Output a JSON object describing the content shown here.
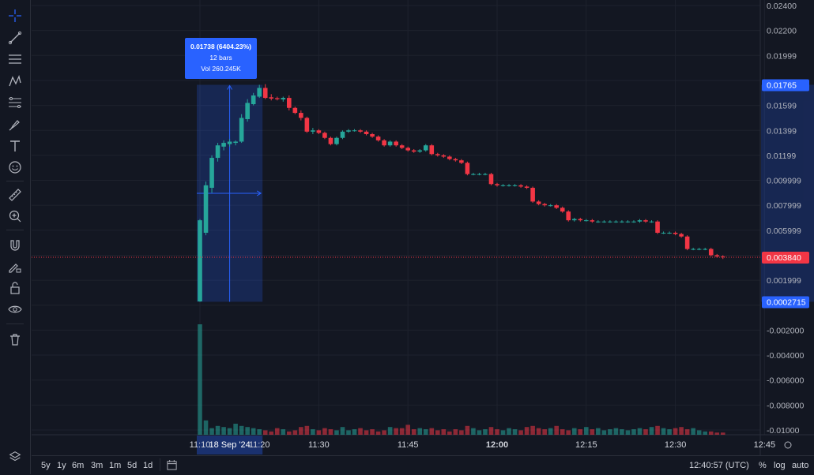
{
  "toolbar": {
    "icons": [
      "crosshair-icon",
      "trend-line-icon",
      "horizontal-lines-icon",
      "pattern-icon",
      "fib-icon",
      "brush-icon",
      "text-icon",
      "emoji-icon",
      "ruler-icon",
      "zoom-in-icon",
      "magnet-icon",
      "pencil-lock-icon",
      "lock-icon",
      "eye-icon",
      "trash-icon"
    ]
  },
  "measure_tooltip": {
    "line1": "0.01738 (6404.23%)",
    "line2": "12 bars",
    "line3": "Vol 260.245K"
  },
  "price_axis": {
    "labels": [
      "0.02400",
      "0.02200",
      "0.01999",
      "0.01765",
      "0.01599",
      "0.01399",
      "0.01199",
      "0.009999",
      "0.007999",
      "0.005999",
      "0.003840",
      "0.001999",
      "0.0002715",
      "-0.002000",
      "-0.004000",
      "-0.006000",
      "-0.008000",
      "-0.01000"
    ],
    "current_price_label": "0.01765",
    "last_price_label": "0.003840",
    "measure_low_label": "0.0002715"
  },
  "time_axis": {
    "labels": [
      "11:10",
      "18 Sep '24",
      "11:20",
      "11:30",
      "11:45",
      "12:00",
      "12:15",
      "12:30",
      "12:45"
    ]
  },
  "bottom_bar": {
    "ranges": [
      "5y",
      "1y",
      "6m",
      "3m",
      "1m",
      "5d",
      "1d"
    ],
    "clock": "12:40:57 (UTC)",
    "percent_label": "%",
    "log_label": "log",
    "auto_label": "auto"
  },
  "colors": {
    "up": "#26a69a",
    "down": "#f23645",
    "accent": "#2962ff",
    "bg": "#131722"
  },
  "chart_data": {
    "type": "candlestick",
    "timeframe": "1m",
    "ylim": [
      -0.0102,
      0.0242
    ],
    "candles": [
      {
        "t": "11:10",
        "o": 0.0003,
        "h": 0.0069,
        "l": 0.00027,
        "c": 0.0068
      },
      {
        "t": "11:11",
        "o": 0.0058,
        "h": 0.0099,
        "l": 0.0056,
        "c": 0.0096
      },
      {
        "t": "11:12",
        "o": 0.0094,
        "h": 0.012,
        "l": 0.009,
        "c": 0.0118
      },
      {
        "t": "11:13",
        "o": 0.0118,
        "h": 0.013,
        "l": 0.0115,
        "c": 0.0128
      },
      {
        "t": "11:14",
        "o": 0.0127,
        "h": 0.0132,
        "l": 0.0124,
        "c": 0.013
      },
      {
        "t": "11:15",
        "o": 0.0129,
        "h": 0.0133,
        "l": 0.0127,
        "c": 0.0131
      },
      {
        "t": "11:16",
        "o": 0.013,
        "h": 0.0132,
        "l": 0.0128,
        "c": 0.0131
      },
      {
        "t": "11:17",
        "o": 0.0131,
        "h": 0.0153,
        "l": 0.013,
        "c": 0.015
      },
      {
        "t": "11:18",
        "o": 0.0149,
        "h": 0.0165,
        "l": 0.0147,
        "c": 0.0162
      },
      {
        "t": "11:19",
        "o": 0.0161,
        "h": 0.017,
        "l": 0.016,
        "c": 0.0168
      },
      {
        "t": "11:20",
        "o": 0.0167,
        "h": 0.01765,
        "l": 0.0166,
        "c": 0.0174
      },
      {
        "t": "11:21",
        "o": 0.0174,
        "h": 0.0177,
        "l": 0.0165,
        "c": 0.0166
      },
      {
        "t": "11:22",
        "o": 0.01665,
        "h": 0.0169,
        "l": 0.0164,
        "c": 0.01655
      },
      {
        "t": "11:23",
        "o": 0.01658,
        "h": 0.0167,
        "l": 0.0164,
        "c": 0.0165
      },
      {
        "t": "11:24",
        "o": 0.01648,
        "h": 0.0167,
        "l": 0.0163,
        "c": 0.0166
      },
      {
        "t": "11:25",
        "o": 0.0166,
        "h": 0.0168,
        "l": 0.0156,
        "c": 0.0158
      },
      {
        "t": "11:26",
        "o": 0.0158,
        "h": 0.0159,
        "l": 0.0153,
        "c": 0.0154
      },
      {
        "t": "11:27",
        "o": 0.0154,
        "h": 0.0156,
        "l": 0.0148,
        "c": 0.015
      },
      {
        "t": "11:28",
        "o": 0.015,
        "h": 0.0151,
        "l": 0.0138,
        "c": 0.0139
      },
      {
        "t": "11:29",
        "o": 0.0139,
        "h": 0.0142,
        "l": 0.0137,
        "c": 0.014
      },
      {
        "t": "11:30",
        "o": 0.014,
        "h": 0.0141,
        "l": 0.0137,
        "c": 0.0138
      },
      {
        "t": "11:31",
        "o": 0.0138,
        "h": 0.0139,
        "l": 0.0133,
        "c": 0.0134
      },
      {
        "t": "11:32",
        "o": 0.0134,
        "h": 0.0135,
        "l": 0.0128,
        "c": 0.0129
      },
      {
        "t": "11:33",
        "o": 0.0129,
        "h": 0.0135,
        "l": 0.0128,
        "c": 0.0134
      },
      {
        "t": "11:34",
        "o": 0.0134,
        "h": 0.014,
        "l": 0.0133,
        "c": 0.0139
      },
      {
        "t": "11:35",
        "o": 0.0139,
        "h": 0.0141,
        "l": 0.0138,
        "c": 0.014
      },
      {
        "t": "11:36",
        "o": 0.014,
        "h": 0.0141,
        "l": 0.0139,
        "c": 0.014
      },
      {
        "t": "11:37",
        "o": 0.014,
        "h": 0.0141,
        "l": 0.0138,
        "c": 0.0139
      },
      {
        "t": "11:38",
        "o": 0.0139,
        "h": 0.014,
        "l": 0.0136,
        "c": 0.0137
      },
      {
        "t": "11:39",
        "o": 0.0137,
        "h": 0.0138,
        "l": 0.0134,
        "c": 0.0135
      },
      {
        "t": "11:40",
        "o": 0.0135,
        "h": 0.0136,
        "l": 0.0131,
        "c": 0.0132
      },
      {
        "t": "11:41",
        "o": 0.0132,
        "h": 0.0133,
        "l": 0.0127,
        "c": 0.0128
      },
      {
        "t": "11:42",
        "o": 0.0128,
        "h": 0.0132,
        "l": 0.0127,
        "c": 0.0131
      },
      {
        "t": "11:43",
        "o": 0.0131,
        "h": 0.0132,
        "l": 0.0127,
        "c": 0.0128
      },
      {
        "t": "11:44",
        "o": 0.0128,
        "h": 0.0129,
        "l": 0.0125,
        "c": 0.0126
      },
      {
        "t": "11:45",
        "o": 0.0126,
        "h": 0.0127,
        "l": 0.0123,
        "c": 0.0124
      },
      {
        "t": "11:46",
        "o": 0.0124,
        "h": 0.0125,
        "l": 0.0122,
        "c": 0.0123
      },
      {
        "t": "11:47",
        "o": 0.0123,
        "h": 0.0125,
        "l": 0.0122,
        "c": 0.0124
      },
      {
        "t": "11:48",
        "o": 0.0124,
        "h": 0.0129,
        "l": 0.0123,
        "c": 0.0128
      },
      {
        "t": "11:49",
        "o": 0.0128,
        "h": 0.0129,
        "l": 0.012,
        "c": 0.0121
      },
      {
        "t": "11:50",
        "o": 0.0121,
        "h": 0.0122,
        "l": 0.0119,
        "c": 0.012
      },
      {
        "t": "11:51",
        "o": 0.012,
        "h": 0.0121,
        "l": 0.0118,
        "c": 0.0119
      },
      {
        "t": "11:52",
        "o": 0.0119,
        "h": 0.012,
        "l": 0.0116,
        "c": 0.0117
      },
      {
        "t": "11:53",
        "o": 0.0117,
        "h": 0.0118,
        "l": 0.0115,
        "c": 0.0116
      },
      {
        "t": "11:54",
        "o": 0.0116,
        "h": 0.0117,
        "l": 0.0113,
        "c": 0.0114
      },
      {
        "t": "11:55",
        "o": 0.0114,
        "h": 0.0115,
        "l": 0.0104,
        "c": 0.0105
      },
      {
        "t": "11:56",
        "o": 0.0105,
        "h": 0.0106,
        "l": 0.0104,
        "c": 0.0105
      },
      {
        "t": "11:57",
        "o": 0.0105,
        "h": 0.0106,
        "l": 0.0104,
        "c": 0.0105
      },
      {
        "t": "11:58",
        "o": 0.0105,
        "h": 0.0106,
        "l": 0.0104,
        "c": 0.0105
      },
      {
        "t": "11:59",
        "o": 0.0105,
        "h": 0.0106,
        "l": 0.0096,
        "c": 0.0097
      },
      {
        "t": "12:00",
        "o": 0.0097,
        "h": 0.0098,
        "l": 0.0095,
        "c": 0.0096
      },
      {
        "t": "12:01",
        "o": 0.0096,
        "h": 0.0097,
        "l": 0.0095,
        "c": 0.0096
      },
      {
        "t": "12:02",
        "o": 0.0096,
        "h": 0.0097,
        "l": 0.0095,
        "c": 0.0096
      },
      {
        "t": "12:03",
        "o": 0.0096,
        "h": 0.0097,
        "l": 0.0095,
        "c": 0.0096
      },
      {
        "t": "12:04",
        "o": 0.0096,
        "h": 0.0097,
        "l": 0.0094,
        "c": 0.0095
      },
      {
        "t": "12:05",
        "o": 0.0095,
        "h": 0.0096,
        "l": 0.0093,
        "c": 0.0094
      },
      {
        "t": "12:06",
        "o": 0.0094,
        "h": 0.0095,
        "l": 0.0082,
        "c": 0.0083
      },
      {
        "t": "12:07",
        "o": 0.0083,
        "h": 0.0084,
        "l": 0.008,
        "c": 0.0081
      },
      {
        "t": "12:08",
        "o": 0.0081,
        "h": 0.0082,
        "l": 0.0079,
        "c": 0.008
      },
      {
        "t": "12:09",
        "o": 0.008,
        "h": 0.0081,
        "l": 0.0079,
        "c": 0.008
      },
      {
        "t": "12:10",
        "o": 0.008,
        "h": 0.0081,
        "l": 0.0077,
        "c": 0.0078
      },
      {
        "t": "12:11",
        "o": 0.0078,
        "h": 0.0079,
        "l": 0.0074,
        "c": 0.0075
      },
      {
        "t": "12:12",
        "o": 0.0075,
        "h": 0.0076,
        "l": 0.0067,
        "c": 0.0068
      },
      {
        "t": "12:13",
        "o": 0.0068,
        "h": 0.007,
        "l": 0.0067,
        "c": 0.0069
      },
      {
        "t": "12:14",
        "o": 0.0069,
        "h": 0.007,
        "l": 0.0067,
        "c": 0.0068
      },
      {
        "t": "12:15",
        "o": 0.0068,
        "h": 0.0069,
        "l": 0.0067,
        "c": 0.0068
      },
      {
        "t": "12:16",
        "o": 0.0068,
        "h": 0.0069,
        "l": 0.0066,
        "c": 0.0067
      },
      {
        "t": "12:17",
        "o": 0.0067,
        "h": 0.0068,
        "l": 0.0066,
        "c": 0.0067
      },
      {
        "t": "12:18",
        "o": 0.0067,
        "h": 0.0068,
        "l": 0.0066,
        "c": 0.0067
      },
      {
        "t": "12:19",
        "o": 0.0067,
        "h": 0.0068,
        "l": 0.0066,
        "c": 0.0067
      },
      {
        "t": "12:20",
        "o": 0.0067,
        "h": 0.0068,
        "l": 0.0066,
        "c": 0.0067
      },
      {
        "t": "12:21",
        "o": 0.0067,
        "h": 0.0068,
        "l": 0.0066,
        "c": 0.0067
      },
      {
        "t": "12:22",
        "o": 0.0067,
        "h": 0.0068,
        "l": 0.0066,
        "c": 0.0067
      },
      {
        "t": "12:23",
        "o": 0.0067,
        "h": 0.0068,
        "l": 0.0066,
        "c": 0.0067
      },
      {
        "t": "12:24",
        "o": 0.0067,
        "h": 0.0069,
        "l": 0.0066,
        "c": 0.0068
      },
      {
        "t": "12:25",
        "o": 0.0068,
        "h": 0.0069,
        "l": 0.0066,
        "c": 0.0067
      },
      {
        "t": "12:26",
        "o": 0.0067,
        "h": 0.0068,
        "l": 0.0066,
        "c": 0.0067
      },
      {
        "t": "12:27",
        "o": 0.0067,
        "h": 0.0068,
        "l": 0.0057,
        "c": 0.0058
      },
      {
        "t": "12:28",
        "o": 0.0058,
        "h": 0.0059,
        "l": 0.0057,
        "c": 0.0058
      },
      {
        "t": "12:29",
        "o": 0.0058,
        "h": 0.0059,
        "l": 0.0057,
        "c": 0.0058
      },
      {
        "t": "12:30",
        "o": 0.0058,
        "h": 0.0059,
        "l": 0.0056,
        "c": 0.0057
      },
      {
        "t": "12:31",
        "o": 0.0057,
        "h": 0.0058,
        "l": 0.0054,
        "c": 0.0055
      },
      {
        "t": "12:32",
        "o": 0.0055,
        "h": 0.0056,
        "l": 0.0044,
        "c": 0.0045
      },
      {
        "t": "12:33",
        "o": 0.0045,
        "h": 0.0046,
        "l": 0.0044,
        "c": 0.0045
      },
      {
        "t": "12:34",
        "o": 0.0045,
        "h": 0.0046,
        "l": 0.0044,
        "c": 0.0045
      },
      {
        "t": "12:35",
        "o": 0.0045,
        "h": 0.0046,
        "l": 0.0044,
        "c": 0.0045
      },
      {
        "t": "12:36",
        "o": 0.0045,
        "h": 0.0046,
        "l": 0.0039,
        "c": 0.004
      },
      {
        "t": "12:37",
        "o": 0.004,
        "h": 0.0041,
        "l": 0.0038,
        "c": 0.0039
      },
      {
        "t": "12:38",
        "o": 0.0039,
        "h": 0.004,
        "l": 0.0037,
        "c": 0.00384
      }
    ],
    "volume_max": 1.0,
    "volumes": [
      1.0,
      0.13,
      0.06,
      0.08,
      0.07,
      0.06,
      0.1,
      0.08,
      0.07,
      0.06,
      0.05,
      0.04,
      0.03,
      0.06,
      0.05,
      0.03,
      0.04,
      0.07,
      0.08,
      0.05,
      0.04,
      0.06,
      0.05,
      0.04,
      0.07,
      0.04,
      0.05,
      0.06,
      0.04,
      0.05,
      0.03,
      0.04,
      0.07,
      0.06,
      0.06,
      0.09,
      0.05,
      0.06,
      0.05,
      0.06,
      0.04,
      0.05,
      0.03,
      0.05,
      0.04,
      0.08,
      0.06,
      0.04,
      0.05,
      0.07,
      0.05,
      0.04,
      0.06,
      0.05,
      0.04,
      0.07,
      0.08,
      0.06,
      0.05,
      0.06,
      0.08,
      0.05,
      0.04,
      0.06,
      0.05,
      0.07,
      0.05,
      0.06,
      0.04,
      0.05,
      0.06,
      0.05,
      0.04,
      0.05,
      0.06,
      0.05,
      0.07,
      0.08,
      0.06,
      0.05,
      0.06,
      0.07,
      0.05,
      0.06,
      0.04,
      0.03,
      0.03,
      0.02,
      0.02
    ]
  }
}
